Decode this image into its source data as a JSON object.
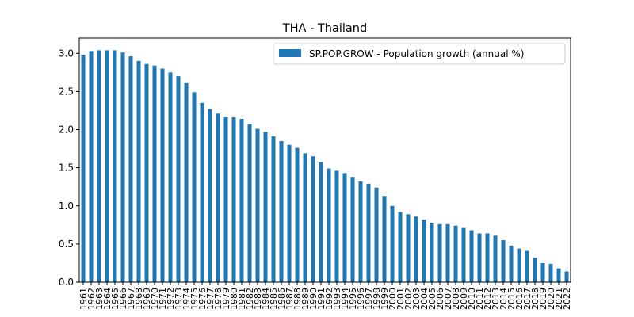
{
  "chart_data": {
    "type": "bar",
    "title": "THA - Thailand",
    "xlabel": "",
    "ylabel": "",
    "ylim": [
      0,
      3.2
    ],
    "yticks": [
      "0.0",
      "0.5",
      "1.0",
      "1.5",
      "2.0",
      "2.5",
      "3.0"
    ],
    "grid": false,
    "legend_position": "top-right",
    "bar_color": "#1f77b4",
    "categories": [
      "1961",
      "1962",
      "1963",
      "1964",
      "1965",
      "1966",
      "1967",
      "1968",
      "1969",
      "1970",
      "1971",
      "1972",
      "1973",
      "1974",
      "1975",
      "1976",
      "1977",
      "1978",
      "1979",
      "1980",
      "1981",
      "1982",
      "1983",
      "1984",
      "1985",
      "1986",
      "1987",
      "1988",
      "1989",
      "1990",
      "1991",
      "1992",
      "1993",
      "1994",
      "1995",
      "1996",
      "1997",
      "1998",
      "1999",
      "2000",
      "2001",
      "2002",
      "2003",
      "2004",
      "2005",
      "2006",
      "2007",
      "2008",
      "2009",
      "2010",
      "2011",
      "2012",
      "2013",
      "2014",
      "2015",
      "2016",
      "2017",
      "2018",
      "2019",
      "2020",
      "2021",
      "2022"
    ],
    "series": [
      {
        "name": "SP.POP.GROW - Population growth (annual %)",
        "values": [
          2.98,
          3.03,
          3.04,
          3.04,
          3.04,
          3.01,
          2.96,
          2.9,
          2.86,
          2.84,
          2.8,
          2.75,
          2.7,
          2.61,
          2.49,
          2.35,
          2.27,
          2.21,
          2.16,
          2.16,
          2.14,
          2.07,
          2.01,
          1.97,
          1.91,
          1.85,
          1.8,
          1.76,
          1.69,
          1.65,
          1.57,
          1.49,
          1.46,
          1.43,
          1.38,
          1.32,
          1.29,
          1.24,
          1.13,
          1.0,
          0.92,
          0.89,
          0.86,
          0.82,
          0.78,
          0.76,
          0.76,
          0.74,
          0.71,
          0.68,
          0.64,
          0.64,
          0.61,
          0.55,
          0.48,
          0.44,
          0.41,
          0.32,
          0.25,
          0.24,
          0.18,
          0.14
        ]
      }
    ]
  }
}
